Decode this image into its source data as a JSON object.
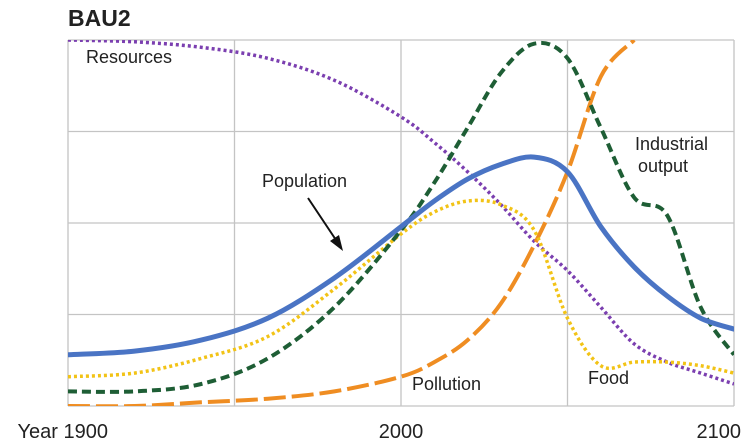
{
  "chart_data": {
    "type": "line",
    "title": "BAU2",
    "xlabel": "Year",
    "ylabel": "",
    "xlim": [
      1900,
      2100
    ],
    "ylim": [
      0,
      1
    ],
    "grid": true,
    "x_ticks": [
      {
        "value": 1900,
        "label": "Year 1900"
      },
      {
        "value": 2000,
        "label": "2000"
      },
      {
        "value": 2100,
        "label": "2100"
      }
    ],
    "series": [
      {
        "name": "Resources",
        "color": "#7b3fb0",
        "style": "dotted",
        "x": [
          1900,
          1920,
          1940,
          1960,
          1980,
          2000,
          2010,
          2020,
          2030,
          2040,
          2050,
          2060,
          2070,
          2080,
          2090,
          2100
        ],
        "values": [
          1.0,
          0.995,
          0.98,
          0.95,
          0.89,
          0.79,
          0.72,
          0.64,
          0.55,
          0.45,
          0.37,
          0.27,
          0.17,
          0.12,
          0.09,
          0.06
        ]
      },
      {
        "name": "Industrial output",
        "color": "#1e5e35",
        "style": "dashed",
        "x": [
          1900,
          1920,
          1940,
          1960,
          1980,
          2000,
          2010,
          2020,
          2030,
          2040,
          2050,
          2060,
          2070,
          2080,
          2090,
          2100
        ],
        "values": [
          0.04,
          0.04,
          0.06,
          0.13,
          0.27,
          0.48,
          0.61,
          0.76,
          0.91,
          0.99,
          0.95,
          0.76,
          0.57,
          0.52,
          0.27,
          0.14
        ]
      },
      {
        "name": "Population",
        "color": "#4a74c4",
        "style": "solid",
        "x": [
          1900,
          1920,
          1940,
          1960,
          1980,
          2000,
          2010,
          2020,
          2030,
          2040,
          2050,
          2060,
          2070,
          2080,
          2090,
          2100
        ],
        "values": [
          0.14,
          0.15,
          0.18,
          0.24,
          0.35,
          0.49,
          0.56,
          0.62,
          0.66,
          0.68,
          0.64,
          0.49,
          0.38,
          0.3,
          0.24,
          0.21
        ]
      },
      {
        "name": "Food",
        "color": "#f2c316",
        "style": "dotted",
        "x": [
          1900,
          1920,
          1940,
          1960,
          1980,
          2000,
          2010,
          2020,
          2030,
          2040,
          2050,
          2060,
          2070,
          2080,
          2090,
          2100
        ],
        "values": [
          0.08,
          0.09,
          0.13,
          0.19,
          0.32,
          0.47,
          0.53,
          0.56,
          0.55,
          0.48,
          0.24,
          0.11,
          0.12,
          0.12,
          0.11,
          0.09
        ]
      },
      {
        "name": "Pollution",
        "color": "#ef8d22",
        "style": "long-dash",
        "x": [
          1900,
          1920,
          1940,
          1960,
          1980,
          2000,
          2010,
          2020,
          2030,
          2040,
          2050,
          2060,
          2070
        ],
        "values": [
          0.0,
          0.0,
          0.01,
          0.02,
          0.04,
          0.08,
          0.12,
          0.18,
          0.28,
          0.44,
          0.64,
          0.9,
          1.0
        ]
      }
    ],
    "annotations": [
      {
        "text": "Resources",
        "series": "Resources"
      },
      {
        "text": "Industrial",
        "series": "Industrial output"
      },
      {
        "text": "output",
        "series": "Industrial output"
      },
      {
        "text": "Population",
        "series": "Population"
      },
      {
        "text": "Food",
        "series": "Food"
      },
      {
        "text": "Pollution",
        "series": "Pollution"
      }
    ]
  }
}
